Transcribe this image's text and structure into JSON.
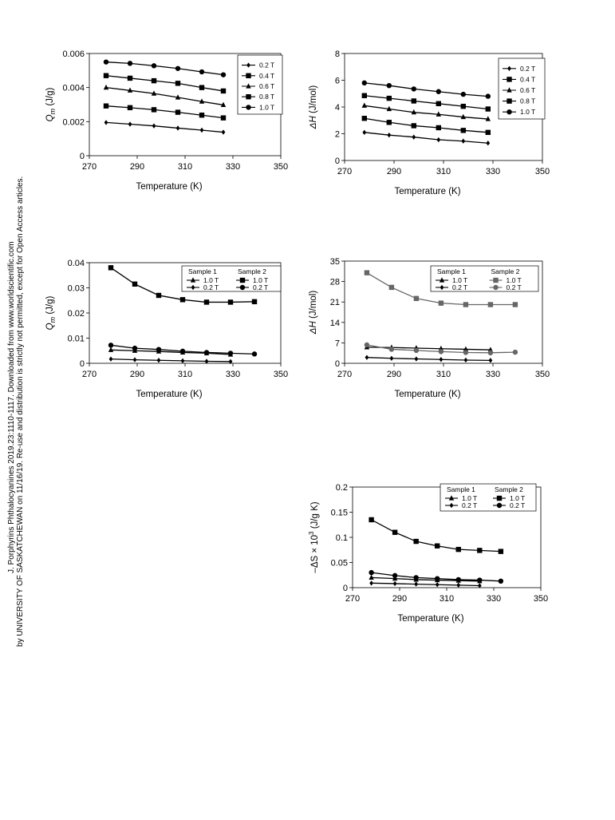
{
  "side_note": {
    "line1": "J. Porphyrins Phthalocyanines 2019.23:1110-1117. Downloaded from www.worldscientific.com",
    "line2": "by UNIVERSITY OF SASKATCHEWAN on 11/16/19. Re-use and distribution is strictly not permitted, except for Open Access articles."
  },
  "chart_data": [
    {
      "type": "line",
      "ylabel_main": "Q",
      "ylabel_sub": "m",
      "ylabel_rest": " (J/g)",
      "xlabel": "Temperature (K)",
      "xlim": [
        270,
        350
      ],
      "ylim": [
        0,
        0.006
      ],
      "xticks": [
        "270",
        "290",
        "310",
        "330",
        "350"
      ],
      "yticks": [
        "0",
        "0.002",
        "0.004",
        "0.006"
      ],
      "legend_layout": "single",
      "series": [
        {
          "name": "0.2 T",
          "marker": "diamond",
          "color": "#000000",
          "x": [
            277,
            287,
            297,
            307,
            317,
            326
          ],
          "y": [
            0.00195,
            0.00185,
            0.00175,
            0.00162,
            0.0015,
            0.00138
          ]
        },
        {
          "name": "0.4 T",
          "marker": "square",
          "color": "#000000",
          "x": [
            277,
            287,
            297,
            307,
            317,
            326
          ],
          "y": [
            0.00292,
            0.00282,
            0.0027,
            0.00255,
            0.00238,
            0.00222
          ]
        },
        {
          "name": "0.6 T",
          "marker": "triangle",
          "color": "#000000",
          "x": [
            277,
            287,
            297,
            307,
            317,
            326
          ],
          "y": [
            0.004,
            0.00383,
            0.00365,
            0.00342,
            0.00318,
            0.00298
          ]
        },
        {
          "name": "0.8 T",
          "marker": "square",
          "color": "#000000",
          "x": [
            277,
            287,
            297,
            307,
            317,
            326
          ],
          "y": [
            0.0047,
            0.00455,
            0.0044,
            0.00425,
            0.004,
            0.0038
          ]
        },
        {
          "name": "1.0 T",
          "marker": "circle",
          "color": "#000000",
          "x": [
            277,
            287,
            297,
            307,
            317,
            326
          ],
          "y": [
            0.0055,
            0.00542,
            0.00528,
            0.00512,
            0.00492,
            0.00475
          ]
        }
      ]
    },
    {
      "type": "line",
      "ylabel_main": "ΔH",
      "ylabel_sub": "",
      "ylabel_rest": " (J/mol)",
      "xlabel": "Temperature (K)",
      "xlim": [
        270,
        350
      ],
      "ylim": [
        0,
        8
      ],
      "xticks": [
        "270",
        "290",
        "310",
        "330",
        "350"
      ],
      "yticks": [
        "0",
        "2",
        "4",
        "6",
        "8"
      ],
      "legend_layout": "single",
      "series": [
        {
          "name": "0.2 T",
          "marker": "diamond",
          "color": "#000000",
          "x": [
            278,
            288,
            298,
            308,
            318,
            328
          ],
          "y": [
            2.1,
            1.9,
            1.75,
            1.55,
            1.45,
            1.3
          ]
        },
        {
          "name": "0.4 T",
          "marker": "square",
          "color": "#000000",
          "x": [
            278,
            288,
            298,
            308,
            318,
            328
          ],
          "y": [
            3.15,
            2.85,
            2.6,
            2.45,
            2.25,
            2.1
          ]
        },
        {
          "name": "0.6 T",
          "marker": "triangle",
          "color": "#000000",
          "x": [
            278,
            288,
            298,
            308,
            318,
            328
          ],
          "y": [
            4.1,
            3.85,
            3.6,
            3.45,
            3.25,
            3.1
          ]
        },
        {
          "name": "0.8 T",
          "marker": "square",
          "color": "#000000",
          "x": [
            278,
            288,
            298,
            308,
            318,
            328
          ],
          "y": [
            4.85,
            4.65,
            4.45,
            4.25,
            4.05,
            3.85
          ]
        },
        {
          "name": "1.0 T",
          "marker": "circle",
          "color": "#000000",
          "x": [
            278,
            288,
            298,
            308,
            318,
            328
          ],
          "y": [
            5.8,
            5.6,
            5.35,
            5.15,
            4.95,
            4.8
          ]
        }
      ]
    },
    {
      "type": "line",
      "ylabel_main": "Q",
      "ylabel_sub": "m",
      "ylabel_rest": " (J/g)",
      "xlabel": "Temperature (K)",
      "xlim": [
        270,
        350
      ],
      "ylim": [
        0,
        0.04
      ],
      "xticks": [
        "270",
        "290",
        "310",
        "330",
        "350"
      ],
      "yticks": [
        "0",
        "0.01",
        "0.02",
        "0.03",
        "0.04"
      ],
      "legend_layout": "grid",
      "legend_headers": [
        "Sample 1",
        "Sample 2"
      ],
      "series": [
        {
          "name": "1.0 T",
          "group": 0,
          "marker": "triangle",
          "color": "#000000",
          "x": [
            279,
            289,
            299,
            309,
            319,
            329
          ],
          "y": [
            0.0053,
            0.005,
            0.0047,
            0.0043,
            0.004,
            0.0035
          ]
        },
        {
          "name": "0.2 T",
          "group": 0,
          "marker": "diamond",
          "color": "#000000",
          "x": [
            279,
            289,
            299,
            309,
            319,
            329
          ],
          "y": [
            0.0017,
            0.0014,
            0.0012,
            0.001,
            0.0008,
            0.0007
          ]
        },
        {
          "name": "1.0 T",
          "group": 1,
          "marker": "square",
          "color": "#000000",
          "x": [
            279,
            289,
            299,
            309,
            319,
            329,
            339
          ],
          "y": [
            0.038,
            0.0315,
            0.027,
            0.0253,
            0.0243,
            0.0243,
            0.0245
          ]
        },
        {
          "name": "0.2 T",
          "group": 1,
          "marker": "circle",
          "color": "#000000",
          "x": [
            279,
            289,
            299,
            309,
            319,
            329,
            339
          ],
          "y": [
            0.0072,
            0.006,
            0.0055,
            0.0048,
            0.0043,
            0.004,
            0.0037
          ]
        }
      ]
    },
    {
      "type": "line",
      "ylabel_main": "ΔH",
      "ylabel_sub": "",
      "ylabel_rest": " (J/mol)",
      "xlabel": "Temperature (K)",
      "xlim": [
        270,
        350
      ],
      "ylim": [
        0,
        35
      ],
      "xticks": [
        "270",
        "290",
        "310",
        "330",
        "350"
      ],
      "yticks": [
        "0",
        "7",
        "14",
        "21",
        "28",
        "35"
      ],
      "legend_layout": "grid",
      "legend_headers": [
        "Sample 1",
        "Sample 2"
      ],
      "series": [
        {
          "name": "1.0 T",
          "group": 0,
          "marker": "triangle",
          "color": "#000000",
          "x": [
            279,
            289,
            299,
            309,
            319,
            329
          ],
          "y": [
            5.5,
            5.4,
            5.2,
            5.0,
            4.8,
            4.6
          ]
        },
        {
          "name": "0.2 T",
          "group": 0,
          "marker": "diamond",
          "color": "#000000",
          "x": [
            279,
            289,
            299,
            309,
            319,
            329
          ],
          "y": [
            2.0,
            1.7,
            1.5,
            1.3,
            1.1,
            1.0
          ]
        },
        {
          "name": "1.0 T",
          "group": 1,
          "marker": "square",
          "color": "#666666",
          "x": [
            279,
            289,
            299,
            309,
            319,
            329,
            339
          ],
          "y": [
            31.0,
            26.0,
            22.2,
            20.6,
            20.1,
            20.1,
            20.1
          ]
        },
        {
          "name": "0.2 T",
          "group": 1,
          "marker": "circle",
          "color": "#666666",
          "x": [
            279,
            289,
            299,
            309,
            319,
            329,
            339
          ],
          "y": [
            6.3,
            4.8,
            4.4,
            4.0,
            3.7,
            3.6,
            3.8
          ]
        }
      ]
    },
    {
      "type": "line",
      "ylabel_main": "–ΔS × 10",
      "ylabel_sup": "3",
      "ylabel_sub": "",
      "ylabel_rest": " (J/g K)",
      "xlabel": "Temperature (K)",
      "xlim": [
        270,
        350
      ],
      "ylim": [
        0,
        0.2
      ],
      "xticks": [
        "270",
        "290",
        "310",
        "330",
        "350"
      ],
      "yticks": [
        "0",
        "0.05",
        "0.1",
        "0.15",
        "0.2"
      ],
      "legend_layout": "grid",
      "legend_headers": [
        "Sample 1",
        "Sample 2"
      ],
      "series": [
        {
          "name": "1.0 T",
          "group": 0,
          "marker": "triangle",
          "color": "#000000",
          "x": [
            278,
            288,
            297,
            306,
            315,
            324
          ],
          "y": [
            0.02,
            0.018,
            0.016,
            0.015,
            0.014,
            0.013
          ]
        },
        {
          "name": "0.2 T",
          "group": 0,
          "marker": "diamond",
          "color": "#000000",
          "x": [
            278,
            288,
            297,
            306,
            315,
            324
          ],
          "y": [
            0.009,
            0.008,
            0.007,
            0.006,
            0.005,
            0.004
          ]
        },
        {
          "name": "1.0 T",
          "group": 1,
          "marker": "square",
          "color": "#000000",
          "x": [
            278,
            288,
            297,
            306,
            315,
            324,
            333
          ],
          "y": [
            0.135,
            0.11,
            0.092,
            0.083,
            0.076,
            0.074,
            0.072
          ]
        },
        {
          "name": "0.2 T",
          "group": 1,
          "marker": "circle",
          "color": "#000000",
          "x": [
            278,
            288,
            297,
            306,
            315,
            324,
            333
          ],
          "y": [
            0.03,
            0.024,
            0.02,
            0.018,
            0.016,
            0.015,
            0.013
          ]
        }
      ]
    }
  ]
}
